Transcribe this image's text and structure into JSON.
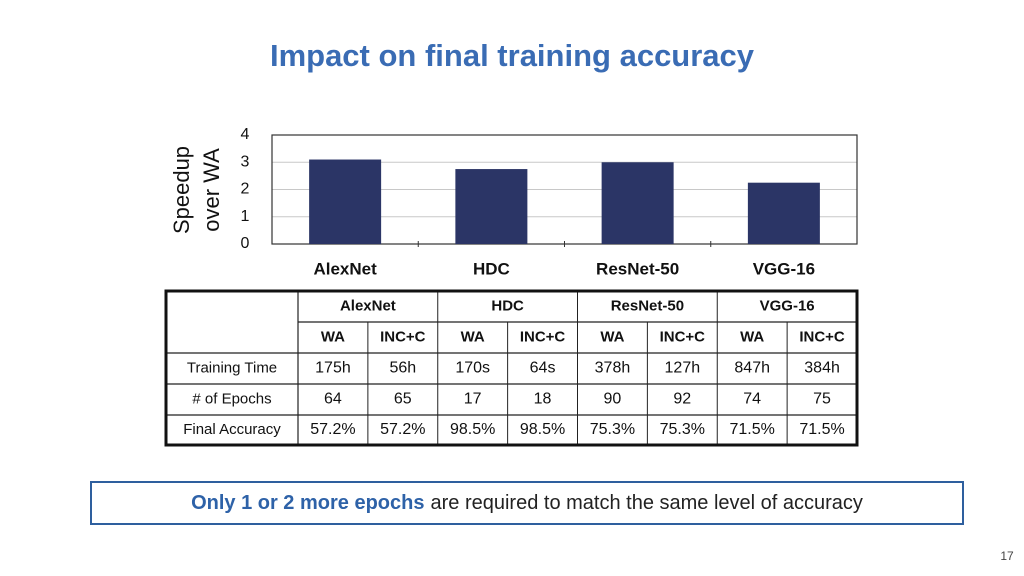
{
  "title": "Impact on final training accuracy",
  "chart_data": {
    "type": "bar",
    "y_label": [
      "Speedup",
      "over WA"
    ],
    "categories": [
      "AlexNet",
      "HDC",
      "ResNet-50",
      "VGG-16"
    ],
    "values": [
      3.1,
      2.75,
      3.0,
      2.25
    ],
    "color": "#2b3566",
    "ylim": [
      0,
      4
    ],
    "yticks": [
      0,
      1,
      2,
      3,
      4
    ],
    "grid": true
  },
  "table": {
    "groups": [
      "AlexNet",
      "HDC",
      "ResNet-50",
      "VGG-16"
    ],
    "subheaders": [
      "WA",
      "INC+C",
      "WA",
      "INC+C",
      "WA",
      "INC+C",
      "WA",
      "INC+C"
    ],
    "rows": [
      [
        "Training Time",
        "175h",
        "56h",
        "170s",
        "64s",
        "378h",
        "127h",
        "847h",
        "384h"
      ],
      [
        "# of Epochs",
        "64",
        "65",
        "17",
        "18",
        "90",
        "92",
        "74",
        "75"
      ],
      [
        "Final Accuracy",
        "57.2%",
        "57.2%",
        "98.5%",
        "98.5%",
        "75.3%",
        "75.3%",
        "71.5%",
        "71.5%"
      ]
    ]
  },
  "callout": {
    "highlight": "Only 1 or 2 more epochs",
    "text": "are required to match the same level of accuracy"
  },
  "page_number": "17"
}
